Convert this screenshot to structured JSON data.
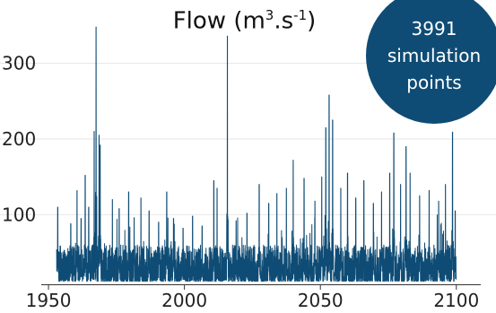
{
  "title": {
    "main": "Flow (m",
    "sup1": "3",
    "mid": ".s",
    "sup2": "-1",
    "end": ")"
  },
  "badge": {
    "count": "3991",
    "line2": "simulation",
    "line3": "points",
    "color": "#0f4c75"
  },
  "chart_data": {
    "type": "line",
    "title": "Flow (m3.s-1)",
    "xlabel": "",
    "ylabel": "",
    "xlim": [
      1948,
      2107
    ],
    "ylim": [
      8,
      360
    ],
    "x_ticks": [
      1950,
      2000,
      2050,
      2100
    ],
    "y_ticks": [
      100,
      200,
      300
    ],
    "grid": "horizontal",
    "line_color": "#0f4c75",
    "point_count": 3991,
    "x_start": 1953,
    "x_end": 2100,
    "peaks": [
      {
        "x": 1953.4,
        "y": 110
      },
      {
        "x": 1958.2,
        "y": 88
      },
      {
        "x": 1960.5,
        "y": 132
      },
      {
        "x": 1962.0,
        "y": 95
      },
      {
        "x": 1963.5,
        "y": 152
      },
      {
        "x": 1964.8,
        "y": 110
      },
      {
        "x": 1966.8,
        "y": 210
      },
      {
        "x": 1967.5,
        "y": 348
      },
      {
        "x": 1968.6,
        "y": 205
      },
      {
        "x": 1969.0,
        "y": 192
      },
      {
        "x": 1973.5,
        "y": 120
      },
      {
        "x": 1976.0,
        "y": 108
      },
      {
        "x": 1979.5,
        "y": 130
      },
      {
        "x": 1981.5,
        "y": 96
      },
      {
        "x": 1984.0,
        "y": 122
      },
      {
        "x": 1987.0,
        "y": 105
      },
      {
        "x": 1990.5,
        "y": 90
      },
      {
        "x": 1993.5,
        "y": 130
      },
      {
        "x": 1996.0,
        "y": 95
      },
      {
        "x": 1999.5,
        "y": 82
      },
      {
        "x": 2003.0,
        "y": 98
      },
      {
        "x": 2006.5,
        "y": 85
      },
      {
        "x": 2010.8,
        "y": 145
      },
      {
        "x": 2012.0,
        "y": 135
      },
      {
        "x": 2015.8,
        "y": 336
      },
      {
        "x": 2019.0,
        "y": 92
      },
      {
        "x": 2023.0,
        "y": 102
      },
      {
        "x": 2027.5,
        "y": 140
      },
      {
        "x": 2031.0,
        "y": 115
      },
      {
        "x": 2034.0,
        "y": 128
      },
      {
        "x": 2037.5,
        "y": 135
      },
      {
        "x": 2040.0,
        "y": 172
      },
      {
        "x": 2044.0,
        "y": 148
      },
      {
        "x": 2048.0,
        "y": 118
      },
      {
        "x": 2050.5,
        "y": 150
      },
      {
        "x": 2052.0,
        "y": 215
      },
      {
        "x": 2053.2,
        "y": 258
      },
      {
        "x": 2054.5,
        "y": 225
      },
      {
        "x": 2057.5,
        "y": 135
      },
      {
        "x": 2060.0,
        "y": 155
      },
      {
        "x": 2063.0,
        "y": 122
      },
      {
        "x": 2066.0,
        "y": 145
      },
      {
        "x": 2069.5,
        "y": 115
      },
      {
        "x": 2072.5,
        "y": 130
      },
      {
        "x": 2075.5,
        "y": 155
      },
      {
        "x": 2077.0,
        "y": 208
      },
      {
        "x": 2079.5,
        "y": 140
      },
      {
        "x": 2081.5,
        "y": 190
      },
      {
        "x": 2083.0,
        "y": 155
      },
      {
        "x": 2086.5,
        "y": 125
      },
      {
        "x": 2090.0,
        "y": 132
      },
      {
        "x": 2093.5,
        "y": 118
      },
      {
        "x": 2096.0,
        "y": 140
      },
      {
        "x": 2098.6,
        "y": 209
      },
      {
        "x": 2099.6,
        "y": 105
      }
    ],
    "baseline_range": [
      12,
      60
    ]
  }
}
